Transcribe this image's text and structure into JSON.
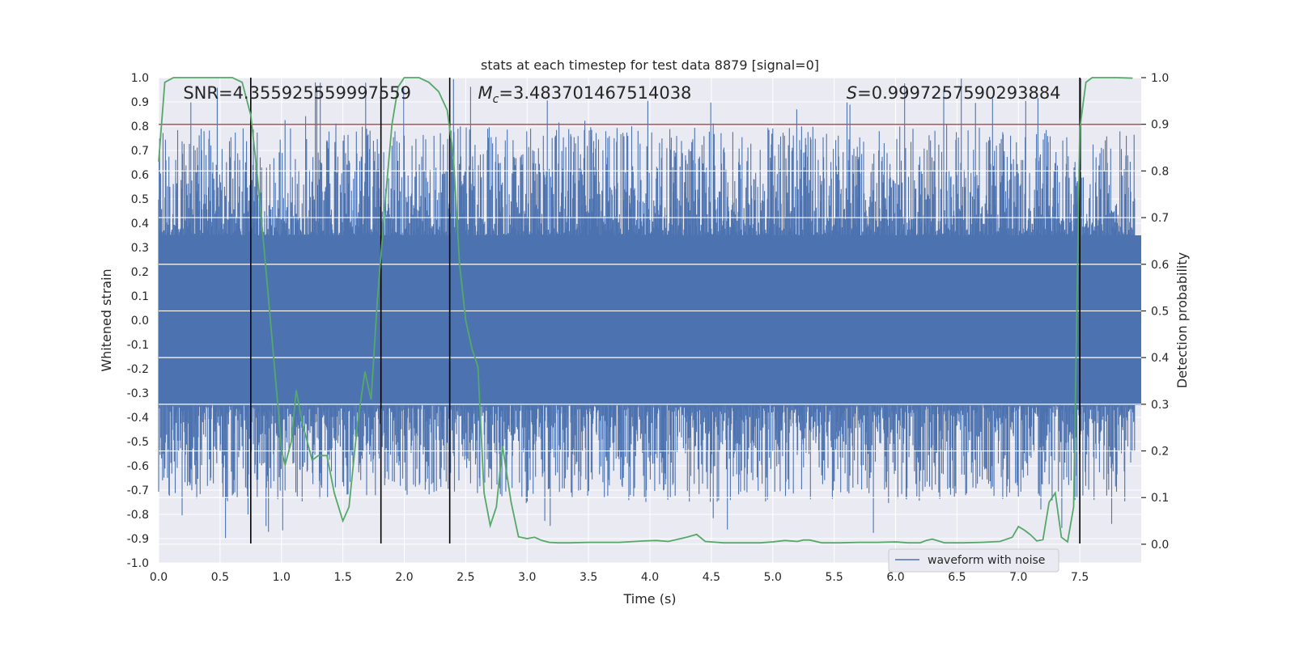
{
  "chart_data": {
    "type": "line",
    "title": "stats at each timestep for test data 8879 [signal=0]",
    "xlabel": "Time (s)",
    "ylabel": "Whitened strain",
    "y2label": "Detection probability",
    "xlim": [
      0.0,
      8.0
    ],
    "ylim": [
      -1.0,
      1.0
    ],
    "y2lim": [
      -0.04,
      1.0
    ],
    "x_ticks": [
      "0.0",
      "0.5",
      "1.0",
      "1.5",
      "2.0",
      "2.5",
      "3.0",
      "3.5",
      "4.0",
      "4.5",
      "5.0",
      "5.5",
      "6.0",
      "6.5",
      "7.0",
      "7.5"
    ],
    "x_tick_values": [
      0.0,
      0.5,
      1.0,
      1.5,
      2.0,
      2.5,
      3.0,
      3.5,
      4.0,
      4.5,
      5.0,
      5.5,
      6.0,
      6.5,
      7.0,
      7.5
    ],
    "y_ticks": [
      "-1.0",
      "-0.9",
      "-0.8",
      "-0.7",
      "-0.6",
      "-0.5",
      "-0.4",
      "-0.3",
      "-0.2",
      "-0.1",
      "0.0",
      "0.1",
      "0.2",
      "0.3",
      "0.4",
      "0.5",
      "0.6",
      "0.7",
      "0.8",
      "0.9",
      "1.0"
    ],
    "y_tick_values": [
      -1.0,
      -0.9,
      -0.8,
      -0.7,
      -0.6,
      -0.5,
      -0.4,
      -0.3,
      -0.2,
      -0.1,
      0.0,
      0.1,
      0.2,
      0.3,
      0.4,
      0.5,
      0.6,
      0.7,
      0.8,
      0.9,
      1.0
    ],
    "y2_ticks": [
      "0.0",
      "0.1",
      "0.2",
      "0.3",
      "0.4",
      "0.5",
      "0.6",
      "0.7",
      "0.8",
      "0.9",
      "1.0"
    ],
    "y2_tick_values": [
      0.0,
      0.1,
      0.2,
      0.3,
      0.4,
      0.5,
      0.6,
      0.7,
      0.8,
      0.9,
      1.0
    ],
    "annotations": [
      {
        "text": "SNR=4.355925559997559",
        "x": 0.2
      },
      {
        "text": "Mc=3.483701467514038",
        "x": 2.6,
        "math": "M_c"
      },
      {
        "text": "S=0.9997257590293884",
        "x": 5.6,
        "math": "S"
      }
    ],
    "legend": {
      "position": "lower-right",
      "entries": [
        {
          "label": "waveform with noise",
          "color": "#4c72b0"
        }
      ]
    },
    "threshold_line": {
      "y2": 0.9,
      "color": "#c44e52"
    },
    "vertical_lines": [
      0.75,
      1.81,
      2.37,
      7.5
    ],
    "noise_envelope": {
      "core": [
        -0.35,
        0.35
      ],
      "peak_min": -0.9,
      "peak_max": 1.0,
      "samples": 2000
    },
    "probability_series": {
      "color": "#55a868",
      "x": [
        0.0,
        0.05,
        0.12,
        0.2,
        0.3,
        0.4,
        0.5,
        0.6,
        0.68,
        0.75,
        0.8,
        0.86,
        0.92,
        0.98,
        1.0,
        1.03,
        1.08,
        1.12,
        1.17,
        1.25,
        1.3,
        1.37,
        1.43,
        1.5,
        1.55,
        1.62,
        1.68,
        1.73,
        1.78,
        1.85,
        1.9,
        1.95,
        2.0,
        2.05,
        2.12,
        2.2,
        2.28,
        2.35,
        2.4,
        2.45,
        2.5,
        2.55,
        2.6,
        2.65,
        2.7,
        2.75,
        2.8,
        2.87,
        2.93,
        3.0,
        3.06,
        3.12,
        3.18,
        3.25,
        3.35,
        3.5,
        3.6,
        3.75,
        3.95,
        4.05,
        4.15,
        4.3,
        4.38,
        4.45,
        4.6,
        4.75,
        4.9,
        5.0,
        5.1,
        5.2,
        5.25,
        5.3,
        5.4,
        5.55,
        5.7,
        5.85,
        6.0,
        6.1,
        6.2,
        6.25,
        6.3,
        6.4,
        6.55,
        6.7,
        6.85,
        6.95,
        7.0,
        7.05,
        7.1,
        7.15,
        7.2,
        7.25,
        7.3,
        7.35,
        7.4,
        7.45,
        7.5,
        7.55,
        7.6,
        7.65,
        7.7,
        7.8,
        7.93
      ],
      "y": [
        0.82,
        0.99,
        1.0,
        1.0,
        1.0,
        1.0,
        1.0,
        1.0,
        0.99,
        0.92,
        0.8,
        0.63,
        0.45,
        0.27,
        0.2,
        0.17,
        0.22,
        0.33,
        0.26,
        0.18,
        0.19,
        0.19,
        0.11,
        0.05,
        0.08,
        0.26,
        0.37,
        0.31,
        0.52,
        0.75,
        0.9,
        0.98,
        1.0,
        1.0,
        1.0,
        0.99,
        0.97,
        0.93,
        0.83,
        0.6,
        0.48,
        0.42,
        0.38,
        0.11,
        0.04,
        0.08,
        0.21,
        0.09,
        0.016,
        0.012,
        0.015,
        0.008,
        0.004,
        0.003,
        0.003,
        0.004,
        0.004,
        0.004,
        0.007,
        0.008,
        0.006,
        0.015,
        0.021,
        0.006,
        0.003,
        0.003,
        0.003,
        0.005,
        0.008,
        0.006,
        0.009,
        0.009,
        0.003,
        0.003,
        0.004,
        0.004,
        0.005,
        0.003,
        0.003,
        0.008,
        0.011,
        0.003,
        0.003,
        0.004,
        0.006,
        0.015,
        0.038,
        0.03,
        0.02,
        0.007,
        0.01,
        0.09,
        0.11,
        0.015,
        0.005,
        0.08,
        0.89,
        0.99,
        1.0,
        1.0,
        1.0,
        1.0,
        0.999
      ]
    }
  }
}
